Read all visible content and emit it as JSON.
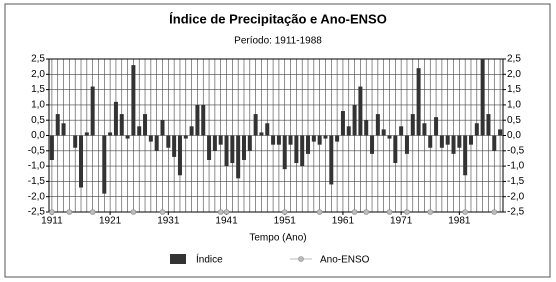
{
  "chart_data": {
    "type": "bar",
    "title": "Índice de Precipitação e Ano-ENSO",
    "subtitle": "Período: 1911-1988",
    "x_label": "Tempo (Ano)",
    "x": [
      1911,
      1912,
      1913,
      1914,
      1915,
      1916,
      1917,
      1918,
      1919,
      1920,
      1921,
      1922,
      1923,
      1924,
      1925,
      1926,
      1927,
      1928,
      1929,
      1930,
      1931,
      1932,
      1933,
      1934,
      1935,
      1936,
      1937,
      1938,
      1939,
      1940,
      1941,
      1942,
      1943,
      1944,
      1945,
      1946,
      1947,
      1948,
      1949,
      1950,
      1951,
      1952,
      1953,
      1954,
      1955,
      1956,
      1957,
      1958,
      1959,
      1960,
      1961,
      1962,
      1963,
      1964,
      1965,
      1966,
      1967,
      1968,
      1969,
      1970,
      1971,
      1972,
      1973,
      1974,
      1975,
      1976,
      1977,
      1978,
      1979,
      1980,
      1981,
      1982,
      1983,
      1984,
      1985,
      1986,
      1987,
      1988
    ],
    "xlim": [
      1910.5,
      1988.5
    ],
    "xticks": [
      1911,
      1921,
      1931,
      1941,
      1951,
      1961,
      1971,
      1981
    ],
    "series": [
      {
        "name": "Índice",
        "color": "#333333",
        "values": [
          -0.8,
          0.7,
          0.4,
          0.0,
          -0.4,
          -1.7,
          0.1,
          1.6,
          0.0,
          -1.9,
          0.1,
          1.1,
          0.7,
          -0.1,
          2.3,
          0.3,
          0.7,
          -0.2,
          -0.5,
          0.5,
          -0.4,
          -0.7,
          -1.3,
          -0.1,
          0.3,
          1.0,
          1.0,
          -0.8,
          -0.5,
          -0.3,
          -1.0,
          -0.9,
          -1.4,
          -0.8,
          -0.5,
          0.7,
          0.1,
          0.4,
          -0.3,
          -0.3,
          -1.1,
          -0.3,
          -0.9,
          -1.0,
          -0.6,
          -0.2,
          -0.3,
          -0.1,
          -1.6,
          -0.2,
          0.8,
          0.3,
          1.0,
          1.6,
          0.5,
          -0.6,
          0.7,
          0.2,
          -0.1,
          -0.9,
          0.3,
          -0.6,
          0.7,
          2.2,
          0.4,
          -0.4,
          0.6,
          -0.4,
          -0.3,
          -0.6,
          -0.4,
          -1.3,
          -0.3,
          0.4,
          2.5,
          0.7,
          -0.5,
          0.2
        ]
      },
      {
        "name": "Ano-ENSO",
        "color": "#bbbbbb",
        "values": [
          -2.5,
          null,
          null,
          -2.5,
          null,
          null,
          null,
          -2.5,
          null,
          null,
          null,
          null,
          null,
          null,
          -2.5,
          null,
          null,
          null,
          null,
          -2.5,
          null,
          null,
          null,
          null,
          null,
          null,
          null,
          null,
          null,
          -2.5,
          -2.5,
          null,
          null,
          null,
          null,
          null,
          null,
          null,
          null,
          null,
          -2.5,
          null,
          null,
          null,
          null,
          null,
          -2.5,
          null,
          null,
          null,
          null,
          null,
          -2.5,
          null,
          -2.5,
          null,
          null,
          null,
          -2.5,
          null,
          null,
          -2.5,
          null,
          null,
          null,
          -2.5,
          null,
          null,
          null,
          null,
          null,
          -2.5,
          null,
          null,
          null,
          null,
          -2.5,
          null
        ]
      }
    ],
    "ylim": [
      -2.5,
      2.5
    ],
    "yticks": [
      {
        "value": 2.5,
        "label": "2,5"
      },
      {
        "value": 2.0,
        "label": "2,0"
      },
      {
        "value": 1.5,
        "label": "1,5"
      },
      {
        "value": 1.0,
        "label": "1,0"
      },
      {
        "value": 0.5,
        "label": "0,5"
      },
      {
        "value": 0.0,
        "label": "0,0"
      },
      {
        "value": -0.5,
        "label": "-0,5"
      },
      {
        "value": -1.0,
        "label": "-1,0"
      },
      {
        "value": -1.5,
        "label": "-1,5"
      },
      {
        "value": -2.0,
        "label": "-2,0"
      },
      {
        "value": -2.5,
        "label": "-2,5"
      }
    ],
    "y2lim": [
      -2.5,
      2.5
    ],
    "y2ticks": [
      {
        "value": 2.5,
        "label": "2,5"
      },
      {
        "value": 2.0,
        "label": "2,0"
      },
      {
        "value": 1.5,
        "label": "1,5"
      },
      {
        "value": 1.0,
        "label": "1,0"
      },
      {
        "value": 0.5,
        "label": "0,5"
      },
      {
        "value": 0.0,
        "label": "0,0"
      },
      {
        "value": -0.5,
        "label": "-0,5"
      },
      {
        "value": -1.0,
        "label": "-1,0"
      },
      {
        "value": -1.5,
        "label": "-1,5"
      },
      {
        "value": -2.0,
        "label": "-2,0"
      },
      {
        "value": -2.5,
        "label": "-2,5"
      }
    ],
    "grid": true
  }
}
